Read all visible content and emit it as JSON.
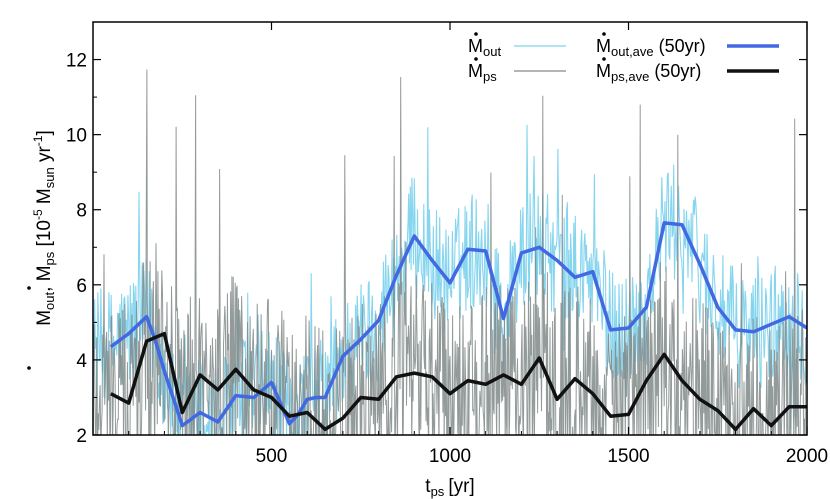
{
  "chart_data": {
    "type": "line",
    "xlabel": "t_ps [yr]",
    "xlabel_main": "t",
    "xlabel_sub": "ps",
    "xlabel_unit": "[yr]",
    "ylabel": "Ṁout, Ṁps [10^-5 Msun yr^-1]",
    "xlim": [
      0,
      2000
    ],
    "ylim": [
      2,
      13
    ],
    "xticks": [
      500,
      1000,
      1500,
      2000
    ],
    "yticks": [
      2,
      4,
      6,
      8,
      10,
      12
    ],
    "colors": {
      "out_raw": "#7fd3ee",
      "ps_raw": "#808a88",
      "out_ave": "#4169e1",
      "ps_ave": "#111111"
    },
    "legend": {
      "placement": "top-right",
      "entries": [
        {
          "name": "out",
          "text": "M",
          "sub": "out",
          "series": "out_raw"
        },
        {
          "name": "ps",
          "text": "M",
          "sub": "ps",
          "series": "ps_raw"
        },
        {
          "name": "out-ave",
          "text": "M",
          "sub": "out,ave",
          "suffix": " (50yr)",
          "series": "out_ave"
        },
        {
          "name": "ps-ave",
          "text": "M",
          "sub": "ps,ave",
          "suffix": " (50yr)",
          "series": "ps_ave"
        }
      ]
    },
    "series": [
      {
        "name": "Mout,ave (50yr)",
        "key": "out_ave",
        "x": [
          50,
          100,
          150,
          175,
          200,
          250,
          300,
          350,
          400,
          450,
          500,
          550,
          575,
          600,
          625,
          650,
          700,
          750,
          800,
          850,
          900,
          950,
          1000,
          1050,
          1100,
          1150,
          1200,
          1250,
          1300,
          1350,
          1400,
          1450,
          1500,
          1550,
          1600,
          1650,
          1700,
          1750,
          1800,
          1850,
          1900,
          1950,
          2000
        ],
        "y": [
          4.35,
          4.7,
          5.15,
          4.5,
          3.7,
          2.25,
          2.6,
          2.35,
          3.05,
          3.0,
          3.4,
          2.3,
          2.55,
          2.95,
          3.0,
          3.0,
          4.1,
          4.55,
          5.05,
          6.25,
          7.3,
          6.65,
          6.05,
          6.95,
          6.9,
          5.1,
          6.85,
          7.0,
          6.65,
          6.2,
          6.35,
          4.8,
          4.85,
          5.4,
          7.65,
          7.6,
          6.55,
          5.4,
          4.8,
          4.75,
          4.95,
          5.15,
          4.85
        ]
      },
      {
        "name": "Mps,ave (50yr)",
        "key": "ps_ave",
        "x": [
          50,
          100,
          150,
          200,
          250,
          300,
          350,
          400,
          450,
          500,
          550,
          600,
          650,
          700,
          750,
          800,
          850,
          900,
          950,
          1000,
          1050,
          1100,
          1150,
          1200,
          1250,
          1300,
          1350,
          1400,
          1450,
          1500,
          1550,
          1600,
          1650,
          1700,
          1750,
          1800,
          1850,
          1900,
          1950,
          2000
        ],
        "y": [
          3.1,
          2.85,
          4.5,
          4.7,
          2.6,
          3.6,
          3.2,
          3.75,
          3.2,
          3.0,
          2.5,
          2.6,
          2.15,
          2.45,
          3.0,
          2.95,
          3.55,
          3.65,
          3.55,
          3.1,
          3.45,
          3.35,
          3.6,
          3.35,
          4.05,
          2.95,
          3.5,
          3.1,
          2.5,
          2.55,
          3.45,
          4.15,
          3.45,
          2.95,
          2.65,
          2.15,
          2.7,
          2.25,
          2.75,
          2.75
        ]
      }
    ],
    "noisy_series": [
      {
        "name": "Mout",
        "key": "out_raw",
        "anchors_x": [
          0,
          50,
          100,
          150,
          175,
          200,
          250,
          300,
          350,
          400,
          450,
          500,
          550,
          600,
          650,
          700,
          750,
          800,
          850,
          900,
          950,
          1000,
          1050,
          1100,
          1150,
          1200,
          1250,
          1300,
          1350,
          1400,
          1450,
          1500,
          1550,
          1600,
          1650,
          1700,
          1750,
          1800,
          1850,
          1900,
          1950,
          2000
        ],
        "anchors_y": [
          4.3,
          4.35,
          4.7,
          5.15,
          4.5,
          3.7,
          2.25,
          2.6,
          2.35,
          3.05,
          3.0,
          3.4,
          2.3,
          2.95,
          3.0,
          4.1,
          4.55,
          5.05,
          6.25,
          7.3,
          6.65,
          6.05,
          6.95,
          6.9,
          5.1,
          6.85,
          7.0,
          6.65,
          6.2,
          6.35,
          4.8,
          4.85,
          5.4,
          7.65,
          7.6,
          6.55,
          5.4,
          4.8,
          4.75,
          4.95,
          5.15,
          4.85
        ],
        "amplitude": 1.6,
        "samples": 900
      },
      {
        "name": "Mps",
        "key": "ps_raw",
        "anchors_x": [
          0,
          50,
          100,
          150,
          200,
          250,
          300,
          350,
          400,
          450,
          500,
          550,
          600,
          650,
          700,
          750,
          800,
          850,
          900,
          950,
          1000,
          1050,
          1100,
          1150,
          1200,
          1250,
          1300,
          1350,
          1400,
          1450,
          1500,
          1550,
          1600,
          1650,
          1700,
          1750,
          1800,
          1850,
          1900,
          1950,
          2000
        ],
        "anchors_y": [
          3.5,
          3.1,
          2.85,
          4.5,
          4.7,
          2.6,
          3.6,
          3.2,
          3.75,
          3.2,
          3.0,
          2.5,
          2.6,
          2.15,
          2.45,
          3.0,
          2.95,
          3.55,
          3.65,
          3.55,
          3.1,
          3.45,
          3.35,
          3.6,
          3.35,
          4.05,
          2.95,
          3.5,
          3.1,
          2.5,
          2.55,
          3.45,
          4.15,
          3.45,
          2.95,
          2.65,
          2.15,
          2.7,
          2.25,
          2.75,
          2.75
        ],
        "amplitude": 2.4,
        "samples": 1100
      }
    ]
  }
}
